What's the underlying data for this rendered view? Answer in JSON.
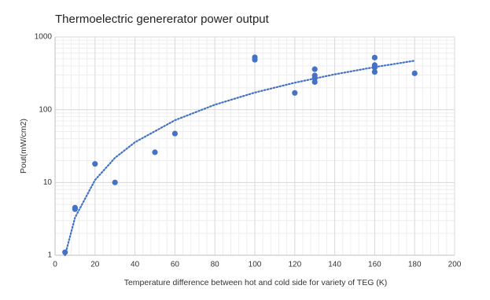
{
  "chart_data": {
    "type": "scatter",
    "title": "Thermoelectric genererator power output",
    "x_label": "Temperature difference between hot and cold side for variety of TEG (K)",
    "y_label": "Pout(mW/cm2)",
    "series": [
      {
        "color": "#4472c4",
        "x": [
          5,
          10,
          10,
          20,
          30,
          50,
          60,
          100,
          100,
          120,
          130,
          130,
          130,
          130,
          160,
          160,
          160,
          160,
          180
        ],
        "values": [
          1.1,
          4.3,
          4.5,
          18,
          10,
          26,
          47,
          525,
          486,
          170,
          360,
          295,
          270,
          240,
          520,
          410,
          380,
          330,
          316
        ]
      }
    ],
    "trendline": {
      "color": "#4472c4",
      "style": "dotted",
      "x": [
        5,
        10,
        20,
        30,
        40,
        60,
        80,
        100,
        120,
        140,
        160,
        180
      ],
      "values": [
        1.0,
        3.29,
        10.8,
        21.8,
        35.7,
        71.6,
        117,
        172,
        235,
        306,
        385,
        471
      ]
    },
    "xlim": [
      0,
      200
    ],
    "xticks": [
      0,
      20,
      40,
      60,
      80,
      100,
      120,
      140,
      160,
      180,
      200
    ],
    "ylim": [
      1,
      1000
    ],
    "yticks": [
      1,
      10,
      100,
      1000
    ],
    "log_y": true,
    "grid": true,
    "minor_grid": true
  }
}
